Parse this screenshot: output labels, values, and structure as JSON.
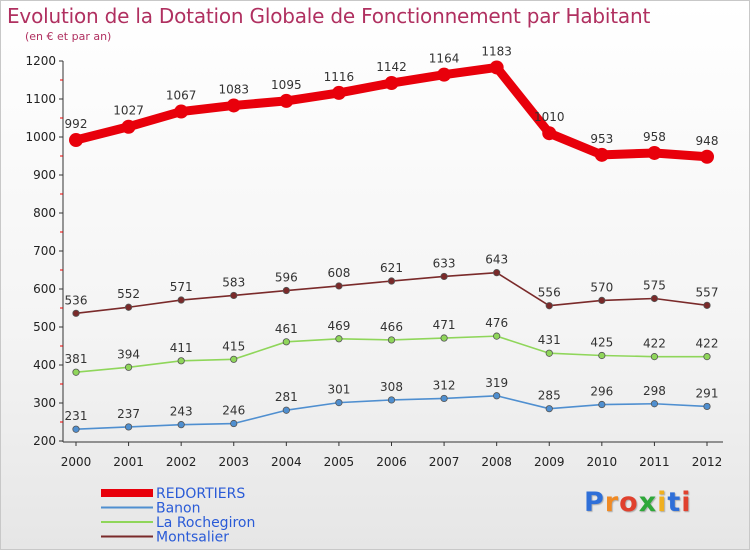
{
  "header": {
    "title": "Evolution de la Dotation Globale de Fonctionnement par Habitant",
    "subtitle": "(en € et par an)"
  },
  "logo": {
    "text": "Proxiti",
    "colors": [
      "#2f6fd8",
      "#f08a24",
      "#e0412e",
      "#2fa83a",
      "#f0b020",
      "#2f6fd8",
      "#e0412e"
    ]
  },
  "chart_data": {
    "type": "line",
    "title": "Evolution de la Dotation Globale de Fonctionnement par Habitant",
    "subtitle": "(en € et par an)",
    "xlabel": "",
    "ylabel": "",
    "x": [
      "2000",
      "2001",
      "2002",
      "2003",
      "2004",
      "2005",
      "2006",
      "2007",
      "2008",
      "2009",
      "2010",
      "2011",
      "2012"
    ],
    "ylim": [
      200,
      1200
    ],
    "yticks": [
      200,
      300,
      400,
      500,
      600,
      700,
      800,
      900,
      1000,
      1100,
      1200
    ],
    "grid": false,
    "legend_position": "bottom-left",
    "series": [
      {
        "name": "REDORTIERS",
        "color": "#e8000b",
        "bold": true,
        "values": [
          992,
          1027,
          1067,
          1083,
          1095,
          1116,
          1142,
          1164,
          1183,
          1010,
          953,
          958,
          948
        ]
      },
      {
        "name": "Banon",
        "color": "#4f8fd0",
        "bold": false,
        "values": [
          231,
          237,
          243,
          246,
          281,
          301,
          308,
          312,
          319,
          285,
          296,
          298,
          291
        ]
      },
      {
        "name": "La Rochegiron",
        "color": "#8fd65a",
        "bold": false,
        "values": [
          381,
          394,
          411,
          415,
          461,
          469,
          466,
          471,
          476,
          431,
          425,
          422,
          422
        ]
      },
      {
        "name": "Montsalier",
        "color": "#7a2a2a",
        "bold": false,
        "values": [
          536,
          552,
          571,
          583,
          596,
          608,
          621,
          633,
          643,
          556,
          570,
          575,
          557
        ]
      }
    ]
  }
}
